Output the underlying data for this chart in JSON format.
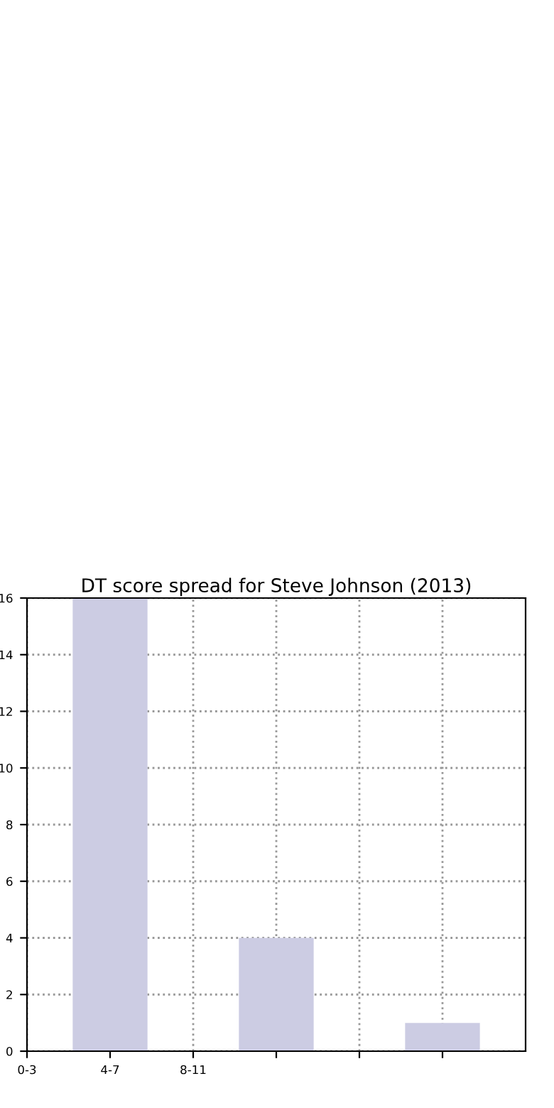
{
  "chart_data": {
    "type": "bar",
    "title": "DT score spread for Steve Johnson (2013)",
    "categories": [
      "0-3",
      "4-7",
      "8-11",
      null,
      null,
      null
    ],
    "values": [
      0,
      16,
      0,
      4,
      0,
      1
    ],
    "color": "#cccce3",
    "ylim": [
      0,
      16
    ],
    "yticks": [
      0,
      2,
      4,
      6,
      8,
      10,
      12,
      14,
      16
    ],
    "grid": true
  }
}
